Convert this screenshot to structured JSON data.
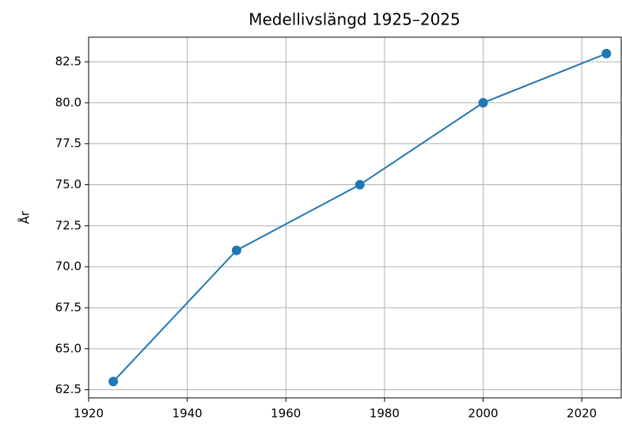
{
  "chart_data": {
    "type": "line",
    "title": "Medellivslängd 1925–2025",
    "ylabel": "År",
    "x": [
      1925,
      1950,
      1975,
      2000,
      2025
    ],
    "series": [
      {
        "name": "Medellivslängd",
        "color": "#1f77b4",
        "values": [
          63,
          71,
          75,
          80,
          83
        ]
      }
    ],
    "xlim": [
      1920,
      2028
    ],
    "xticks": [
      1920,
      1940,
      1960,
      1980,
      2000,
      2020
    ],
    "ylim": [
      62,
      84
    ],
    "yticks": [
      62.5,
      {
        "value": 65,
        "label": "65.0"
      },
      67.5,
      {
        "value": 70,
        "label": "70.0"
      },
      72.5,
      {
        "value": 75,
        "label": "75.0"
      },
      77.5,
      {
        "value": 80,
        "label": "80.0"
      },
      82.5
    ],
    "grid": true
  }
}
